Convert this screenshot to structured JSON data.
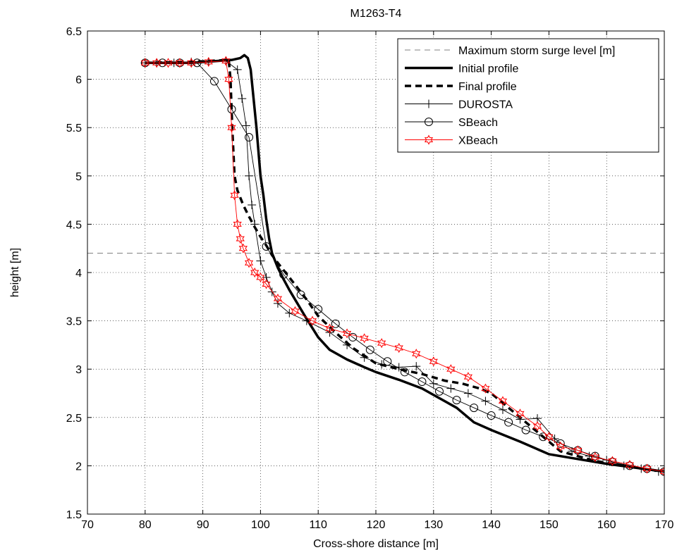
{
  "chart_data": {
    "type": "line",
    "title": "M1263-T4",
    "xlabel": "Cross-shore distance [m]",
    "ylabel": "height [m]",
    "xlim": [
      70,
      170
    ],
    "ylim": [
      1.5,
      6.5
    ],
    "xticks": [
      "70",
      "80",
      "90",
      "100",
      "110",
      "120",
      "130",
      "140",
      "150",
      "160",
      "170"
    ],
    "yticks": [
      "1.5",
      "2",
      "2.5",
      "3",
      "3.5",
      "4",
      "4.5",
      "5",
      "5.5",
      "6",
      "6.5"
    ],
    "grid": true,
    "legend_position": "top-right",
    "surge_level": 4.2,
    "series": [
      {
        "name": "Maximum storm surge level [m]",
        "style": "dashed-thin",
        "color": "#808080",
        "marker": "none",
        "x": [
          70,
          170
        ],
        "y": [
          4.2,
          4.2
        ]
      },
      {
        "name": "Initial profile",
        "style": "solid-thick",
        "color": "#000000",
        "marker": "none",
        "x": [
          80,
          88,
          95,
          96.5,
          97.2,
          97.8,
          98.3,
          98.8,
          99.3,
          100,
          100.5,
          101,
          101.5,
          102,
          103,
          104,
          105,
          106,
          107,
          108,
          110,
          112,
          115,
          118,
          120,
          124,
          128,
          131,
          134,
          137,
          140,
          145,
          150,
          155,
          160,
          165,
          170
        ],
        "y": [
          6.17,
          6.17,
          6.2,
          6.22,
          6.25,
          6.22,
          6.1,
          5.8,
          5.5,
          5.0,
          4.8,
          4.55,
          4.35,
          4.2,
          4.05,
          3.93,
          3.82,
          3.72,
          3.62,
          3.52,
          3.33,
          3.2,
          3.1,
          3.02,
          2.97,
          2.89,
          2.8,
          2.7,
          2.6,
          2.45,
          2.37,
          2.25,
          2.12,
          2.07,
          2.02,
          1.98,
          1.94
        ]
      },
      {
        "name": "Final profile",
        "style": "dashed-thick",
        "color": "#000000",
        "marker": "none",
        "x": [
          80,
          88,
          94.5,
          94.8,
          95.1,
          95.5,
          96,
          97,
          98,
          99,
          100,
          101,
          102,
          103,
          105,
          108,
          110,
          113,
          116,
          120,
          124,
          128,
          132,
          135,
          138,
          140,
          142,
          145,
          148,
          150,
          152,
          155,
          158,
          160,
          165,
          170
        ],
        "y": [
          6.17,
          6.18,
          6.2,
          6.0,
          5.5,
          5.0,
          4.85,
          4.7,
          4.58,
          4.47,
          4.37,
          4.28,
          4.18,
          4.1,
          3.95,
          3.72,
          3.55,
          3.38,
          3.22,
          3.06,
          3.0,
          2.95,
          2.88,
          2.85,
          2.8,
          2.75,
          2.65,
          2.5,
          2.35,
          2.25,
          2.15,
          2.1,
          2.05,
          2.03,
          1.98,
          1.94
        ]
      },
      {
        "name": "DUROSTA",
        "style": "solid-thin",
        "color": "#000000",
        "marker": "plus",
        "x": [
          80,
          82,
          85,
          88,
          91,
          94,
          96,
          96.8,
          97.5,
          98,
          98.5,
          99,
          100,
          101,
          102,
          103,
          105,
          108,
          112,
          115,
          118,
          121,
          124,
          127,
          130,
          133,
          136,
          139,
          142,
          145,
          148,
          151,
          154,
          157,
          160,
          163,
          166,
          169
        ],
        "y": [
          6.17,
          6.17,
          6.17,
          6.18,
          6.18,
          6.19,
          6.1,
          5.8,
          5.52,
          5.0,
          4.7,
          4.5,
          4.12,
          3.95,
          3.8,
          3.68,
          3.58,
          3.5,
          3.38,
          3.25,
          3.12,
          3.05,
          3.02,
          3.03,
          2.85,
          2.8,
          2.75,
          2.67,
          2.58,
          2.48,
          2.49,
          2.28,
          2.15,
          2.1,
          2.06,
          2.0,
          1.97,
          1.94
        ]
      },
      {
        "name": "SBeach",
        "style": "solid-thin",
        "color": "#000000",
        "marker": "circle",
        "x": [
          80,
          83,
          86,
          89,
          92,
          95,
          98,
          101,
          104,
          107,
          110,
          113,
          116,
          119,
          122,
          125,
          128,
          131,
          134,
          137,
          140,
          143,
          146,
          149,
          152,
          155,
          158,
          161,
          164,
          167,
          170
        ],
        "y": [
          6.17,
          6.17,
          6.17,
          6.17,
          5.98,
          5.69,
          5.4,
          4.27,
          3.98,
          3.77,
          3.62,
          3.47,
          3.33,
          3.2,
          3.08,
          2.97,
          2.87,
          2.77,
          2.68,
          2.6,
          2.52,
          2.45,
          2.37,
          2.3,
          2.23,
          2.16,
          2.1,
          2.04,
          2.0,
          1.97,
          1.94
        ]
      },
      {
        "name": "XBeach",
        "style": "solid-thin",
        "color": "#ff0000",
        "marker": "star",
        "x": [
          80,
          82,
          84,
          86,
          88,
          91,
          94,
          94.5,
          95,
          95.5,
          96,
          96.5,
          97,
          98,
          99,
          100,
          101,
          103,
          106,
          109,
          112,
          115,
          118,
          121,
          124,
          127,
          130,
          133,
          136,
          139,
          142,
          145,
          148,
          150,
          152,
          155,
          158,
          161,
          164,
          167,
          170
        ],
        "y": [
          6.17,
          6.17,
          6.17,
          6.17,
          6.17,
          6.18,
          6.19,
          6.0,
          5.5,
          4.8,
          4.5,
          4.35,
          4.25,
          4.1,
          4.0,
          3.95,
          3.88,
          3.73,
          3.6,
          3.5,
          3.42,
          3.37,
          3.32,
          3.27,
          3.22,
          3.16,
          3.08,
          3.0,
          2.92,
          2.8,
          2.67,
          2.54,
          2.41,
          2.3,
          2.2,
          2.16,
          2.09,
          2.05,
          2.01,
          1.97,
          1.94
        ]
      }
    ]
  }
}
